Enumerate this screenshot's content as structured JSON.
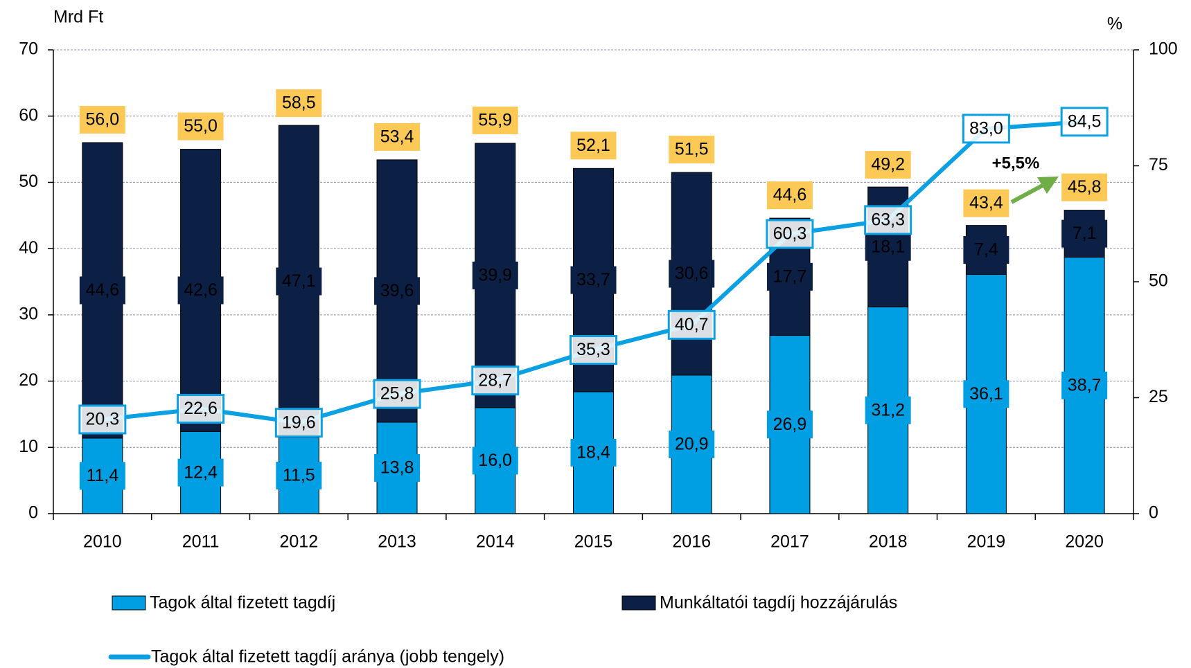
{
  "chart_data": {
    "type": "bar",
    "stacked": true,
    "y_label": "Mrd Ft",
    "y2_label": "%",
    "categories": [
      "2010",
      "2011",
      "2012",
      "2013",
      "2014",
      "2015",
      "2016",
      "2017",
      "2018",
      "2019",
      "2020"
    ],
    "series": [
      {
        "name": "Tagok által fizetett tagdíj",
        "color": "#009fe3",
        "type": "bar",
        "values": [
          11.4,
          12.4,
          11.5,
          13.8,
          16.0,
          18.4,
          20.9,
          26.9,
          31.2,
          36.1,
          38.7
        ],
        "value_labels": [
          "11,4",
          "12,4",
          "11,5",
          "13,8",
          "16,0",
          "18,4",
          "20,9",
          "26,9",
          "31,2",
          "36,1",
          "38,7"
        ]
      },
      {
        "name": "Munkáltatói tagdíj hozzájárulás",
        "color": "#0c1f45",
        "type": "bar",
        "values": [
          44.6,
          42.6,
          47.1,
          39.6,
          39.9,
          33.7,
          30.6,
          17.7,
          18.1,
          7.4,
          7.1
        ],
        "value_labels": [
          "44,6",
          "42,6",
          "47,1",
          "39,6",
          "39,9",
          "33,7",
          "30,6",
          "17,7",
          "18,1",
          "7,4",
          "7,1"
        ]
      },
      {
        "name": "Tagok által fizetett tagdíj aránya (jobb tengely)",
        "color": "#0aa0e2",
        "type": "line",
        "axis": "y2",
        "values": [
          20.3,
          22.6,
          19.6,
          25.8,
          28.7,
          35.3,
          40.7,
          60.3,
          63.3,
          83.0,
          84.5
        ],
        "value_labels": [
          "20,3",
          "22,6",
          "19,6",
          "25,8",
          "28,7",
          "35,3",
          "40,7",
          "60,3",
          "63,3",
          "83,0",
          "84,5"
        ]
      }
    ],
    "totals": {
      "color": "#fcc957",
      "values": [
        56.0,
        55.0,
        58.5,
        53.4,
        55.9,
        52.1,
        51.5,
        44.6,
        49.2,
        43.4,
        45.8
      ],
      "value_labels": [
        "56,0",
        "55,0",
        "58,5",
        "53,4",
        "55,9",
        "52,1",
        "51,5",
        "44,6",
        "49,2",
        "43,4",
        "45,8"
      ]
    },
    "annotations": [
      {
        "text": "+5,5%",
        "color": "#70ad47"
      }
    ],
    "ylim": [
      0,
      70
    ],
    "yticks": [
      0,
      10,
      20,
      30,
      40,
      50,
      60,
      70
    ],
    "y2lim": [
      0,
      100
    ],
    "y2ticks": [
      0,
      25,
      50,
      75,
      100
    ],
    "grid": true
  }
}
